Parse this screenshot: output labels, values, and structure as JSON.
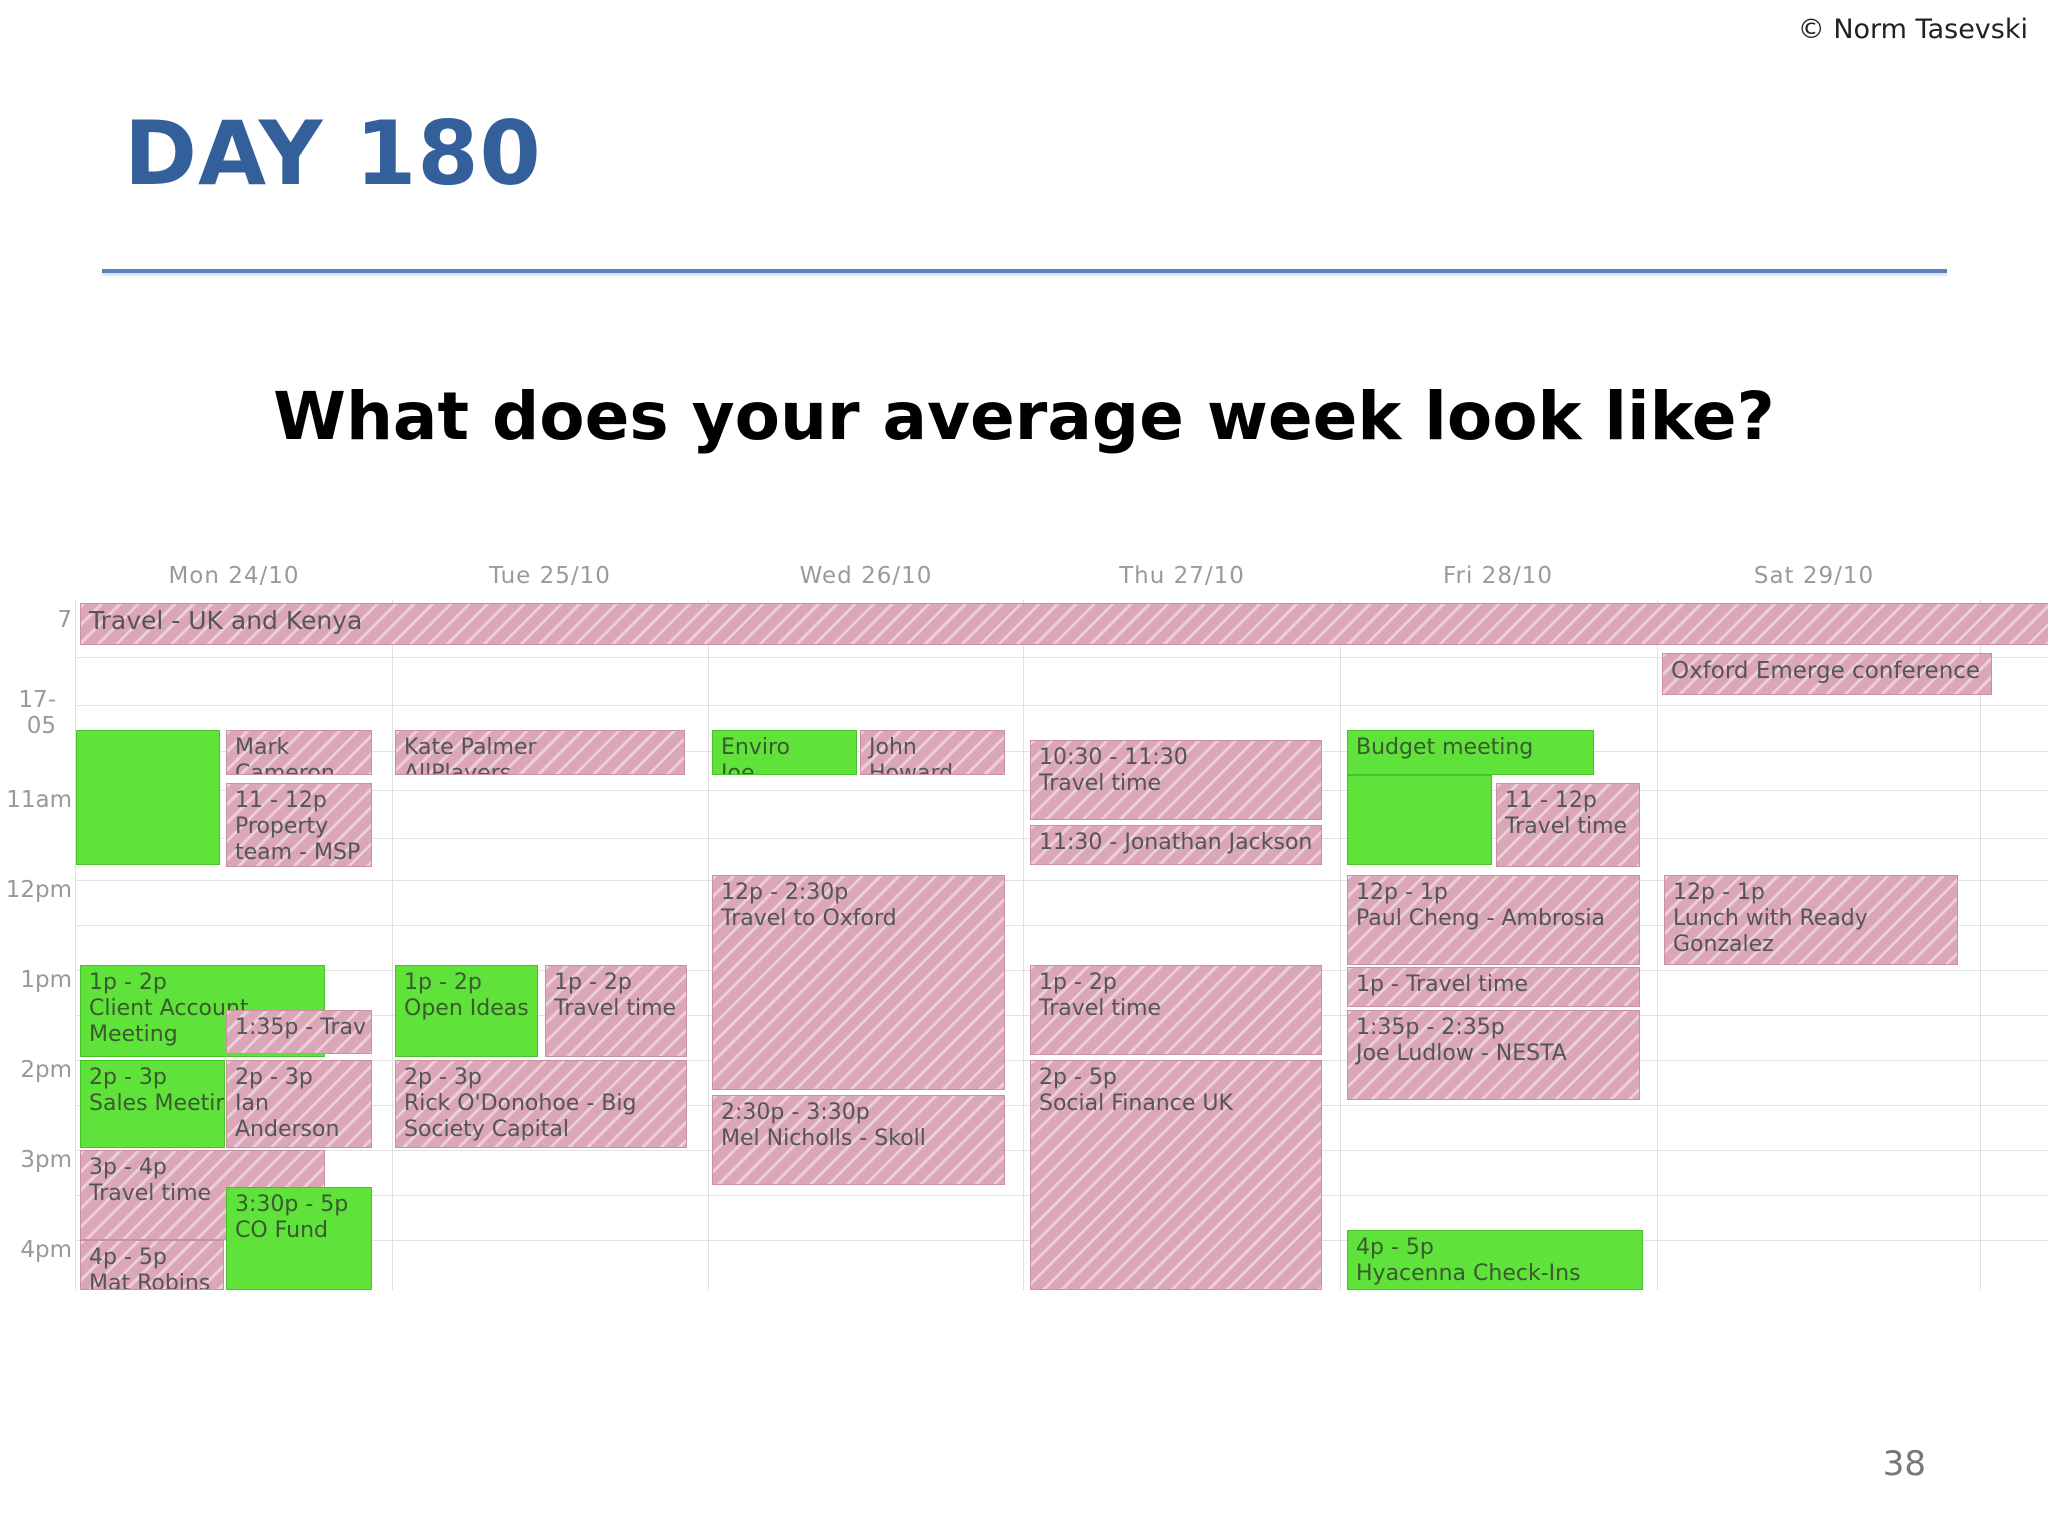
{
  "copyright": "© Norm Tasevski",
  "title": "DAY 180",
  "question": "What does your average week look like?",
  "page_number": "38",
  "colors": {
    "title": "#33609a",
    "rule": "#5a82b6",
    "event_pink": "#dba6b5",
    "event_green": "#5fe23a"
  },
  "calendar": {
    "days": [
      "Mon 24/10",
      "Tue 25/10",
      "Wed 26/10",
      "Thu 27/10",
      "Fri 28/10",
      "Sat 29/10"
    ],
    "times": [
      "7",
      "17-05",
      "11am",
      "12pm",
      "1pm",
      "2pm",
      "3pm",
      "4pm"
    ],
    "all_day": {
      "travel": "Travel - UK and Kenya",
      "oxford": "Oxford Emerge conference"
    },
    "events": {
      "mon_green_morning": {
        "time": "",
        "title": ""
      },
      "mon_mark": {
        "time": "Mark",
        "title": "Cameron"
      },
      "mon_11": {
        "time": "11 - 12p",
        "title": "Property team - MSP"
      },
      "mon_client": {
        "time": "1p - 2p",
        "title": "Client Account Meeting"
      },
      "mon_135": {
        "time": "1:35p - Trav",
        "title": ""
      },
      "mon_sales": {
        "time": "2p - 3p",
        "title": "Sales Meeting"
      },
      "mon_anderson": {
        "time": "2p - 3p",
        "title": "Ian Anderson"
      },
      "mon_travel3": {
        "time": "3p - 4p",
        "title": "Travel time"
      },
      "mon_co_fund": {
        "time": "3:30p - 5p",
        "title": "CO Fund"
      },
      "mon_mat": {
        "time": "4p - 5p",
        "title": "Mat Robins"
      },
      "tue_kate": {
        "time": "Kate Palmer",
        "title": "AllPlayers"
      },
      "tue_open": {
        "time": "1p - 2p",
        "title": "Open Ideas"
      },
      "tue_travel": {
        "time": "1p - 2p",
        "title": "Travel time"
      },
      "tue_rick": {
        "time": "2p - 3p",
        "title": "Rick O'Donohoe - Big Society Capital"
      },
      "wed_enviro": {
        "time": "Enviro",
        "title": "Joe"
      },
      "wed_john": {
        "time": "John",
        "title": "Howard"
      },
      "wed_oxford": {
        "time": "12p - 2:30p",
        "title": "Travel to Oxford"
      },
      "wed_mel": {
        "time": "2:30p - 3:30p",
        "title": "Mel Nicholls - Skoll"
      },
      "thu_travel_am": {
        "time": "10:30 - 11:30",
        "title": "Travel time"
      },
      "thu_jonathan": {
        "time": "11:30 - Jonathan Jackson",
        "title": ""
      },
      "thu_travel_pm": {
        "time": "1p - 2p",
        "title": "Travel time"
      },
      "thu_social": {
        "time": "2p - 5p",
        "title": "Social Finance UK"
      },
      "fri_budget": {
        "time": "Budget meeting",
        "title": ""
      },
      "fri_travel_am": {
        "time": "11 - 12p",
        "title": "Travel time"
      },
      "fri_paul": {
        "time": "12p - 1p",
        "title": "Paul Cheng - Ambrosia"
      },
      "fri_travel_pm": {
        "time": "1p - Travel time",
        "title": ""
      },
      "fri_joe": {
        "time": "1:35p - 2:35p",
        "title": "Joe Ludlow - NESTA"
      },
      "fri_hyacenna": {
        "time": "4p - 5p",
        "title": "Hyacenna Check-Ins"
      },
      "sat_lunch": {
        "time": "12p - 1p",
        "title": "Lunch with Ready Gonzalez"
      }
    }
  }
}
